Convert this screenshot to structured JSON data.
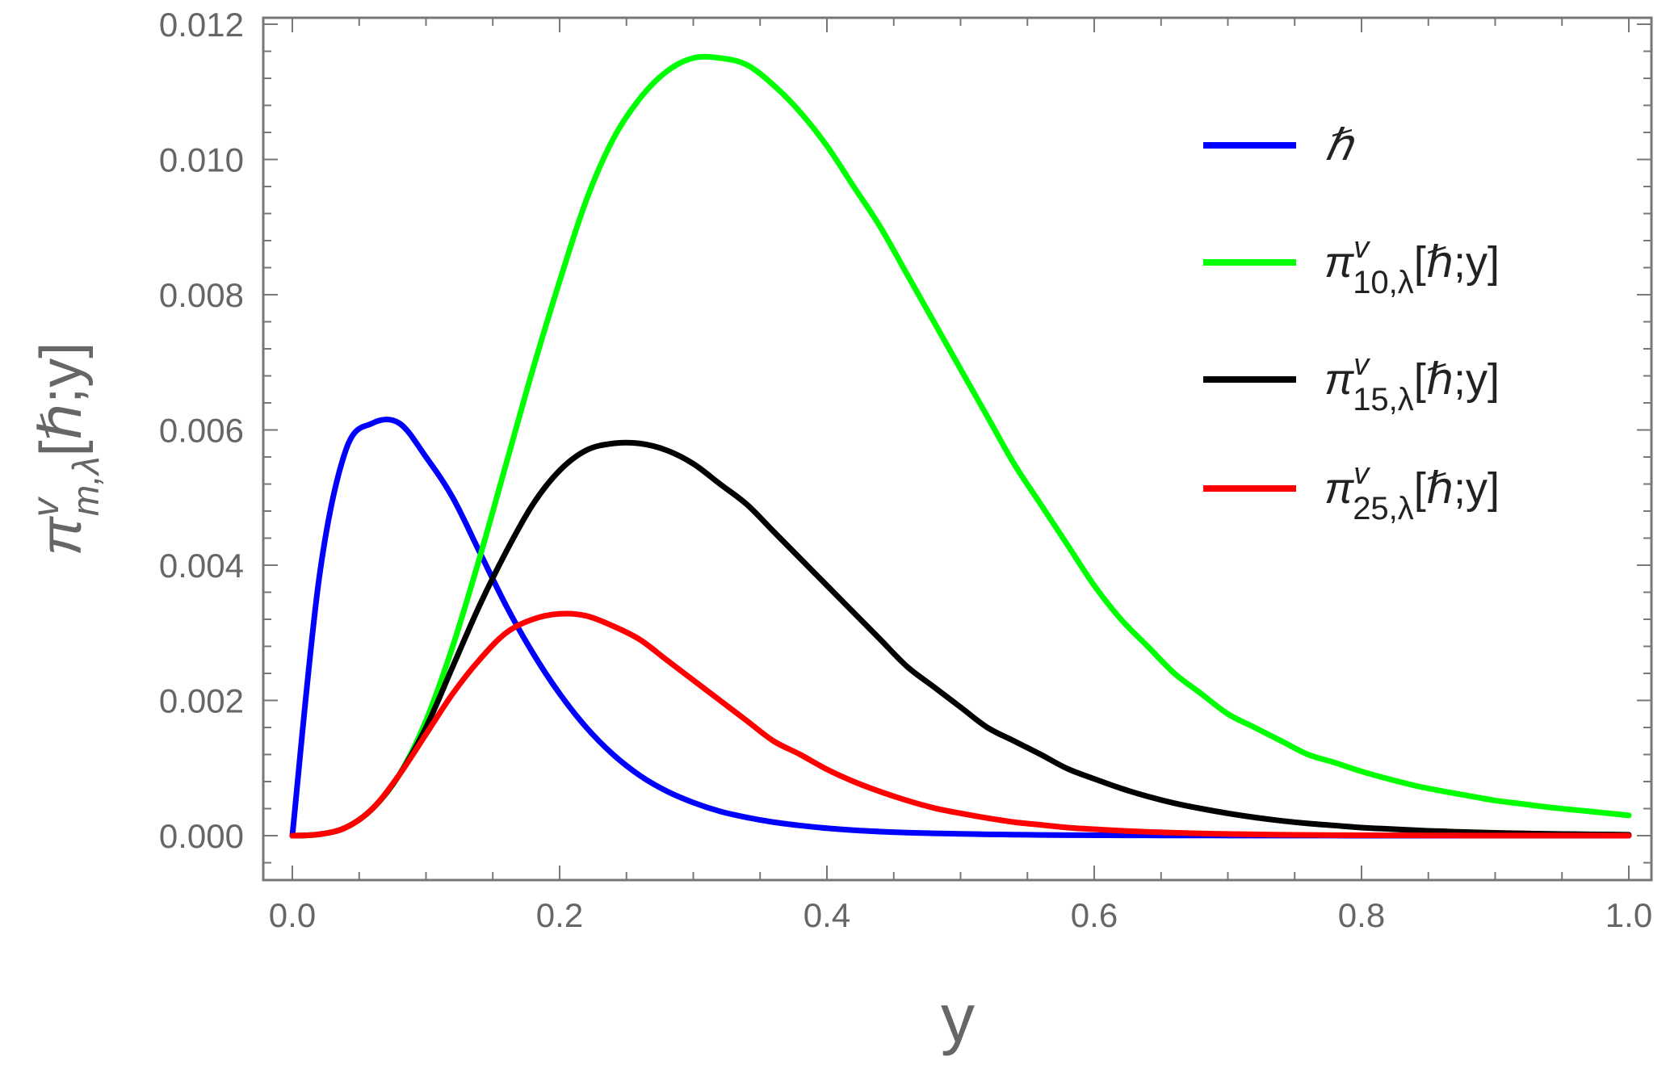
{
  "chart_data": {
    "type": "line",
    "xlabel": "y",
    "ylabel": {
      "base": "π",
      "sup": "v",
      "sub": "m,λ",
      "rest": "[ℏ;y]"
    },
    "xlim": [
      0.0,
      1.0
    ],
    "ylim": [
      -0.0006,
      0.0122
    ],
    "x_ticks": [
      0.0,
      0.2,
      0.4,
      0.6,
      0.8,
      1.0
    ],
    "x_tick_labels": [
      "0.0",
      "0.2",
      "0.4",
      "0.6",
      "0.8",
      "1.0"
    ],
    "y_ticks": [
      0.0,
      0.002,
      0.004,
      0.006,
      0.008,
      0.01,
      0.012
    ],
    "y_tick_labels": [
      "0.000",
      "0.002",
      "0.004",
      "0.006",
      "0.008",
      "0.010",
      "0.012"
    ],
    "grid": false,
    "legend_position": "top-right",
    "x": [
      0.0,
      0.02,
      0.04,
      0.06,
      0.08,
      0.1,
      0.12,
      0.14,
      0.16,
      0.18,
      0.2,
      0.22,
      0.24,
      0.26,
      0.28,
      0.3,
      0.32,
      0.34,
      0.36,
      0.38,
      0.4,
      0.42,
      0.44,
      0.46,
      0.48,
      0.5,
      0.52,
      0.54,
      0.56,
      0.58,
      0.6,
      0.62,
      0.64,
      0.66,
      0.68,
      0.7,
      0.72,
      0.74,
      0.76,
      0.78,
      0.8,
      0.82,
      0.84,
      0.86,
      0.88,
      0.9,
      0.92,
      0.94,
      0.96,
      0.98,
      1.0
    ],
    "series": [
      {
        "name": "ℏ",
        "legend": {
          "base": "ℏ",
          "sup": "",
          "sub": "",
          "rest": ""
        },
        "color": "#0000ff",
        "values": [
          0.0,
          0.0038,
          0.0057,
          0.0061,
          0.0061,
          0.0056,
          0.005,
          0.0042,
          0.0034,
          0.0027,
          0.0021,
          0.0016,
          0.0012,
          0.00089,
          0.00066,
          0.00049,
          0.00036,
          0.00027,
          0.0002,
          0.00015,
          0.00011,
          8e-05,
          6e-05,
          4.5e-05,
          3.5e-05,
          2.7e-05,
          2e-05,
          1.5e-05,
          1.1e-05,
          8e-06,
          6e-06,
          5e-06,
          4e-06,
          3e-06,
          2.5e-06,
          2e-06,
          1.5e-06,
          1.2e-06,
          1e-06,
          8e-07,
          6e-07,
          5e-07,
          4e-07,
          3e-07,
          3e-07,
          2e-07,
          2e-07,
          1e-07,
          1e-07,
          1e-07,
          1e-07
        ]
      },
      {
        "name": "π10,λ[ℏ;y]",
        "legend": {
          "base": "π",
          "sup": "v",
          "sub": "10,λ",
          "rest": "[ℏ;y]"
        },
        "color": "#00ff00",
        "values": [
          0.0,
          2e-05,
          0.00012,
          0.0004,
          0.0009,
          0.0017,
          0.0028,
          0.0041,
          0.0055,
          0.0069,
          0.0082,
          0.0094,
          0.0103,
          0.0109,
          0.0113,
          0.0115,
          0.0115,
          0.0114,
          0.0111,
          0.0107,
          0.0102,
          0.0096,
          0.009,
          0.0083,
          0.0076,
          0.0069,
          0.0062,
          0.0055,
          0.0049,
          0.0043,
          0.0037,
          0.0032,
          0.0028,
          0.0024,
          0.0021,
          0.0018,
          0.0016,
          0.0014,
          0.0012,
          0.00108,
          0.00095,
          0.00084,
          0.00074,
          0.00066,
          0.00059,
          0.00052,
          0.00047,
          0.00042,
          0.00038,
          0.00034,
          0.0003
        ]
      },
      {
        "name": "π15,λ[ℏ;y]",
        "legend": {
          "base": "π",
          "sup": "v",
          "sub": "15,λ",
          "rest": "[ℏ;y]"
        },
        "color": "#000000",
        "values": [
          0.0,
          2e-05,
          0.00012,
          0.0004,
          0.0009,
          0.0016,
          0.0025,
          0.0034,
          0.0042,
          0.0049,
          0.0054,
          0.0057,
          0.0058,
          0.0058,
          0.0057,
          0.0055,
          0.0052,
          0.0049,
          0.0045,
          0.0041,
          0.0037,
          0.0033,
          0.0029,
          0.0025,
          0.0022,
          0.0019,
          0.0016,
          0.0014,
          0.0012,
          0.00099,
          0.00084,
          0.0007,
          0.00058,
          0.00048,
          0.0004,
          0.00033,
          0.00027,
          0.00022,
          0.00018,
          0.00015,
          0.00012,
          0.0001,
          8e-05,
          6.5e-05,
          5.2e-05,
          4.2e-05,
          3.4e-05,
          2.7e-05,
          2.2e-05,
          1.8e-05,
          1.4e-05
        ]
      },
      {
        "name": "π25,λ[ℏ;y]",
        "legend": {
          "base": "π",
          "sup": "v",
          "sub": "25,λ",
          "rest": "[ℏ;y]"
        },
        "color": "#ff0000",
        "values": [
          0.0,
          2e-05,
          0.00012,
          0.0004,
          0.0009,
          0.0015,
          0.0021,
          0.0026,
          0.003,
          0.0032,
          0.00328,
          0.00325,
          0.0031,
          0.0029,
          0.0026,
          0.0023,
          0.002,
          0.0017,
          0.0014,
          0.0012,
          0.00098,
          0.0008,
          0.00065,
          0.00052,
          0.00041,
          0.00033,
          0.00026,
          0.0002,
          0.00016,
          0.00012,
          9.5e-05,
          7.3e-05,
          5.6e-05,
          4.3e-05,
          3.3e-05,
          2.5e-05,
          1.9e-05,
          1.4e-05,
          1.1e-05,
          8e-06,
          6e-06,
          5e-06,
          4e-06,
          3e-06,
          2e-06,
          2e-06,
          1.5e-06,
          1e-06,
          1e-06,
          8e-07,
          6e-07
        ]
      }
    ]
  }
}
